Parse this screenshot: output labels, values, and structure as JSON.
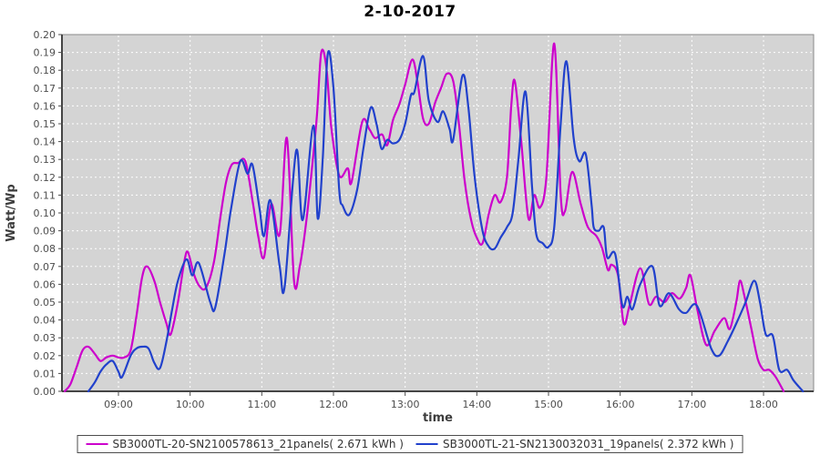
{
  "title": "2-10-2017",
  "chart_data": {
    "type": "line",
    "title": "2-10-2017",
    "xlabel": "time",
    "ylabel": "Watt/Wp",
    "ylim": [
      0.0,
      0.2
    ],
    "y_tick_step": 0.01,
    "x_ticks": [
      "09:00",
      "10:00",
      "11:00",
      "12:00",
      "13:00",
      "14:00",
      "15:00",
      "16:00",
      "17:00",
      "18:00"
    ],
    "x_tick_hours": [
      9,
      10,
      11,
      12,
      13,
      14,
      15,
      16,
      17,
      18
    ],
    "xlim_hours": [
      8.21,
      18.7
    ],
    "grid": true,
    "legend_position": "bottom",
    "plot_bg_color": "#d4d4d4",
    "grid_color": "#ffffff",
    "axis_color": "#4d4d4d",
    "tick_label_color": "#4d4d4d",
    "series": [
      {
        "name": "SB3000TL-20-SN2100578613_21panels( 2.671 kWh )",
        "color": "#cc00cc",
        "points": [
          [
            8.25,
            0.0
          ],
          [
            8.33,
            0.004
          ],
          [
            8.42,
            0.014
          ],
          [
            8.5,
            0.023
          ],
          [
            8.58,
            0.025
          ],
          [
            8.67,
            0.021
          ],
          [
            8.75,
            0.017
          ],
          [
            8.83,
            0.019
          ],
          [
            8.92,
            0.02
          ],
          [
            9.0,
            0.019
          ],
          [
            9.08,
            0.019
          ],
          [
            9.17,
            0.023
          ],
          [
            9.25,
            0.042
          ],
          [
            9.33,
            0.064
          ],
          [
            9.4,
            0.07
          ],
          [
            9.5,
            0.062
          ],
          [
            9.58,
            0.05
          ],
          [
            9.67,
            0.038
          ],
          [
            9.73,
            0.032
          ],
          [
            9.83,
            0.05
          ],
          [
            9.92,
            0.073
          ],
          [
            9.97,
            0.078
          ],
          [
            10.05,
            0.066
          ],
          [
            10.13,
            0.059
          ],
          [
            10.22,
            0.058
          ],
          [
            10.33,
            0.072
          ],
          [
            10.42,
            0.097
          ],
          [
            10.5,
            0.117
          ],
          [
            10.58,
            0.127
          ],
          [
            10.67,
            0.128
          ],
          [
            10.77,
            0.129
          ],
          [
            10.87,
            0.107
          ],
          [
            10.95,
            0.087
          ],
          [
            11.03,
            0.075
          ],
          [
            11.13,
            0.105
          ],
          [
            11.25,
            0.088
          ],
          [
            11.35,
            0.142
          ],
          [
            11.45,
            0.062
          ],
          [
            11.53,
            0.07
          ],
          [
            11.62,
            0.095
          ],
          [
            11.7,
            0.125
          ],
          [
            11.77,
            0.155
          ],
          [
            11.83,
            0.19
          ],
          [
            11.9,
            0.182
          ],
          [
            11.97,
            0.148
          ],
          [
            12.08,
            0.121
          ],
          [
            12.2,
            0.125
          ],
          [
            12.25,
            0.117
          ],
          [
            12.4,
            0.151
          ],
          [
            12.5,
            0.147
          ],
          [
            12.58,
            0.142
          ],
          [
            12.68,
            0.144
          ],
          [
            12.75,
            0.138
          ],
          [
            12.83,
            0.152
          ],
          [
            12.92,
            0.161
          ],
          [
            13.0,
            0.172
          ],
          [
            13.1,
            0.186
          ],
          [
            13.17,
            0.174
          ],
          [
            13.25,
            0.153
          ],
          [
            13.33,
            0.15
          ],
          [
            13.42,
            0.162
          ],
          [
            13.5,
            0.17
          ],
          [
            13.58,
            0.178
          ],
          [
            13.67,
            0.174
          ],
          [
            13.75,
            0.15
          ],
          [
            13.83,
            0.118
          ],
          [
            13.92,
            0.096
          ],
          [
            14.0,
            0.086
          ],
          [
            14.08,
            0.083
          ],
          [
            14.17,
            0.1
          ],
          [
            14.25,
            0.11
          ],
          [
            14.33,
            0.106
          ],
          [
            14.42,
            0.12
          ],
          [
            14.48,
            0.16
          ],
          [
            14.53,
            0.174
          ],
          [
            14.62,
            0.14
          ],
          [
            14.72,
            0.097
          ],
          [
            14.8,
            0.11
          ],
          [
            14.88,
            0.103
          ],
          [
            14.97,
            0.12
          ],
          [
            15.08,
            0.195
          ],
          [
            15.17,
            0.11
          ],
          [
            15.23,
            0.101
          ],
          [
            15.33,
            0.123
          ],
          [
            15.45,
            0.105
          ],
          [
            15.55,
            0.092
          ],
          [
            15.67,
            0.087
          ],
          [
            15.75,
            0.08
          ],
          [
            15.83,
            0.068
          ],
          [
            15.88,
            0.071
          ],
          [
            15.97,
            0.065
          ],
          [
            16.05,
            0.038
          ],
          [
            16.13,
            0.048
          ],
          [
            16.28,
            0.069
          ],
          [
            16.4,
            0.049
          ],
          [
            16.5,
            0.053
          ],
          [
            16.62,
            0.05
          ],
          [
            16.72,
            0.055
          ],
          [
            16.83,
            0.052
          ],
          [
            16.92,
            0.058
          ],
          [
            16.98,
            0.065
          ],
          [
            17.08,
            0.045
          ],
          [
            17.2,
            0.026
          ],
          [
            17.32,
            0.034
          ],
          [
            17.45,
            0.041
          ],
          [
            17.53,
            0.035
          ],
          [
            17.62,
            0.05
          ],
          [
            17.67,
            0.062
          ],
          [
            17.73,
            0.054
          ],
          [
            17.83,
            0.035
          ],
          [
            17.92,
            0.018
          ],
          [
            18.0,
            0.012
          ],
          [
            18.08,
            0.012
          ],
          [
            18.17,
            0.008
          ],
          [
            18.28,
            0.0
          ]
        ]
      },
      {
        "name": "SB3000TL-21-SN2130032031_19panels( 2.372 kWh )",
        "color": "#2141cc",
        "points": [
          [
            8.58,
            0.0
          ],
          [
            8.67,
            0.005
          ],
          [
            8.75,
            0.011
          ],
          [
            8.83,
            0.015
          ],
          [
            8.92,
            0.017
          ],
          [
            9.0,
            0.011
          ],
          [
            9.05,
            0.008
          ],
          [
            9.17,
            0.02
          ],
          [
            9.25,
            0.024
          ],
          [
            9.33,
            0.025
          ],
          [
            9.42,
            0.024
          ],
          [
            9.5,
            0.016
          ],
          [
            9.58,
            0.013
          ],
          [
            9.67,
            0.028
          ],
          [
            9.75,
            0.046
          ],
          [
            9.83,
            0.062
          ],
          [
            9.95,
            0.074
          ],
          [
            10.03,
            0.065
          ],
          [
            10.12,
            0.072
          ],
          [
            10.28,
            0.05
          ],
          [
            10.35,
            0.047
          ],
          [
            10.48,
            0.077
          ],
          [
            10.57,
            0.102
          ],
          [
            10.7,
            0.129
          ],
          [
            10.8,
            0.122
          ],
          [
            10.87,
            0.127
          ],
          [
            10.97,
            0.102
          ],
          [
            11.03,
            0.087
          ],
          [
            11.12,
            0.107
          ],
          [
            11.25,
            0.07
          ],
          [
            11.32,
            0.059
          ],
          [
            11.48,
            0.135
          ],
          [
            11.57,
            0.096
          ],
          [
            11.72,
            0.149
          ],
          [
            11.78,
            0.097
          ],
          [
            11.85,
            0.13
          ],
          [
            11.92,
            0.189
          ],
          [
            12.0,
            0.17
          ],
          [
            12.08,
            0.113
          ],
          [
            12.13,
            0.104
          ],
          [
            12.22,
            0.099
          ],
          [
            12.33,
            0.113
          ],
          [
            12.42,
            0.137
          ],
          [
            12.52,
            0.159
          ],
          [
            12.6,
            0.15
          ],
          [
            12.67,
            0.136
          ],
          [
            12.75,
            0.141
          ],
          [
            12.83,
            0.139
          ],
          [
            12.92,
            0.141
          ],
          [
            13.0,
            0.15
          ],
          [
            13.08,
            0.166
          ],
          [
            13.13,
            0.168
          ],
          [
            13.25,
            0.188
          ],
          [
            13.33,
            0.163
          ],
          [
            13.45,
            0.151
          ],
          [
            13.53,
            0.157
          ],
          [
            13.62,
            0.147
          ],
          [
            13.67,
            0.141
          ],
          [
            13.8,
            0.177
          ],
          [
            13.88,
            0.16
          ],
          [
            13.97,
            0.12
          ],
          [
            14.08,
            0.09
          ],
          [
            14.17,
            0.081
          ],
          [
            14.25,
            0.08
          ],
          [
            14.33,
            0.086
          ],
          [
            14.42,
            0.092
          ],
          [
            14.5,
            0.1
          ],
          [
            14.58,
            0.13
          ],
          [
            14.68,
            0.168
          ],
          [
            14.77,
            0.115
          ],
          [
            14.83,
            0.088
          ],
          [
            14.92,
            0.083
          ],
          [
            15.0,
            0.081
          ],
          [
            15.08,
            0.092
          ],
          [
            15.17,
            0.15
          ],
          [
            15.25,
            0.185
          ],
          [
            15.35,
            0.142
          ],
          [
            15.43,
            0.129
          ],
          [
            15.52,
            0.133
          ],
          [
            15.6,
            0.105
          ],
          [
            15.63,
            0.092
          ],
          [
            15.7,
            0.09
          ],
          [
            15.77,
            0.092
          ],
          [
            15.82,
            0.075
          ],
          [
            15.93,
            0.077
          ],
          [
            16.03,
            0.048
          ],
          [
            16.1,
            0.053
          ],
          [
            16.17,
            0.046
          ],
          [
            16.28,
            0.06
          ],
          [
            16.45,
            0.07
          ],
          [
            16.55,
            0.048
          ],
          [
            16.68,
            0.055
          ],
          [
            16.82,
            0.046
          ],
          [
            16.92,
            0.044
          ],
          [
            17.07,
            0.048
          ],
          [
            17.27,
            0.024
          ],
          [
            17.38,
            0.02
          ],
          [
            17.5,
            0.028
          ],
          [
            17.62,
            0.038
          ],
          [
            17.75,
            0.05
          ],
          [
            17.87,
            0.062
          ],
          [
            17.95,
            0.05
          ],
          [
            18.03,
            0.032
          ],
          [
            18.13,
            0.031
          ],
          [
            18.22,
            0.012
          ],
          [
            18.33,
            0.012
          ],
          [
            18.42,
            0.006
          ],
          [
            18.55,
            0.0
          ]
        ]
      }
    ]
  }
}
